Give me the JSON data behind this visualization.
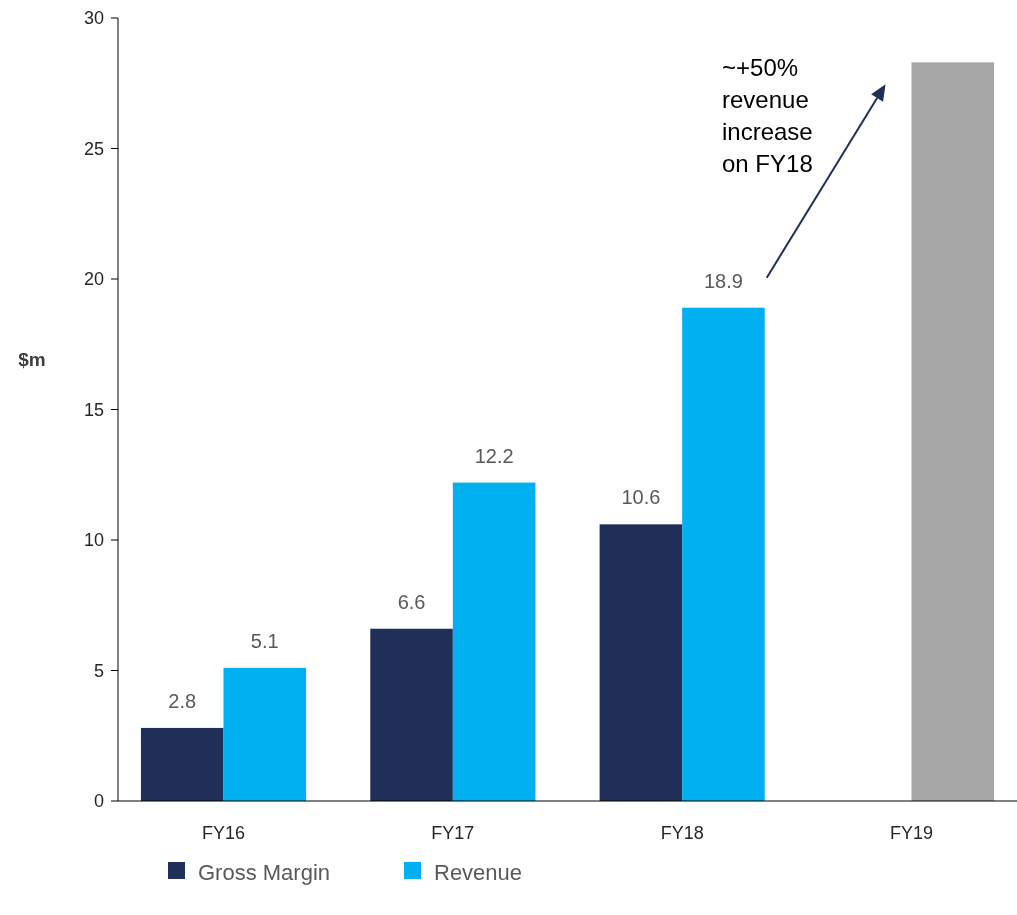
{
  "chart_data": {
    "type": "bar",
    "ylabel": "$m",
    "categories": [
      "FY16",
      "FY17",
      "FY18",
      "FY19"
    ],
    "series": [
      {
        "name": "Gross Margin",
        "color": "#1f2f57",
        "values": [
          2.8,
          6.6,
          10.6,
          null
        ],
        "value_labels": [
          "2.8",
          "6.6",
          "10.6",
          null
        ]
      },
      {
        "name": "Revenue",
        "color": "#00b0f0",
        "colors": [
          "#00b0f0",
          "#00b0f0",
          "#00b0f0",
          "#a6a6a6"
        ],
        "values": [
          5.1,
          12.2,
          18.9,
          28.3
        ],
        "value_labels": [
          "5.1",
          "12.2",
          "18.9",
          null
        ]
      }
    ],
    "ylim": [
      0,
      30
    ],
    "yticks": [
      0,
      5,
      10,
      15,
      20,
      25,
      30
    ],
    "grid": false,
    "legend": "bottom left",
    "annotations": [
      "~+50%\nrevenue\nincrease\non FY18"
    ]
  }
}
